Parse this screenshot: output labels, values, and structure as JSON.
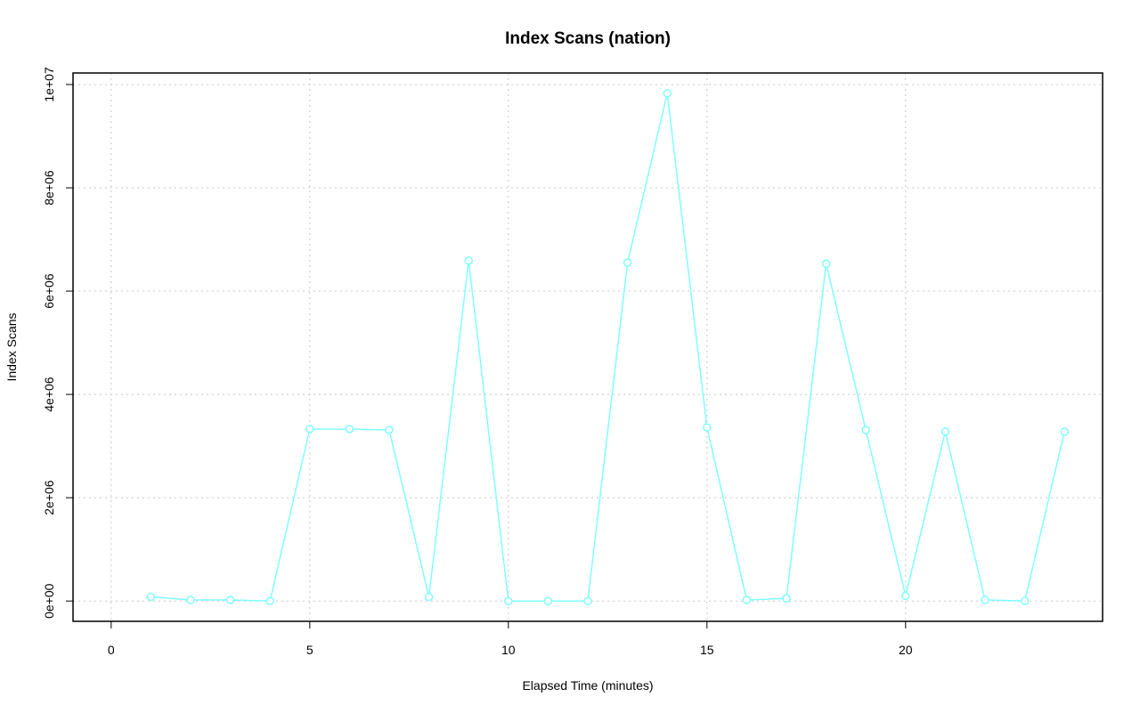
{
  "chart_data": {
    "type": "line",
    "title": "Index Scans (nation)",
    "xlabel": "Elapsed Time (minutes)",
    "ylabel": "Index Scans",
    "x": [
      1,
      2,
      3,
      4,
      5,
      6,
      7,
      8,
      9,
      10,
      11,
      12,
      13,
      14,
      15,
      16,
      17,
      18,
      19,
      20,
      21,
      22,
      23,
      24
    ],
    "values": [
      80000,
      20000,
      20000,
      0,
      3330000,
      3330000,
      3310000,
      80000,
      6590000,
      0,
      0,
      0,
      6550000,
      9830000,
      3360000,
      20000,
      50000,
      6530000,
      3310000,
      100000,
      3280000,
      20000,
      0,
      3280000
    ],
    "color": "#80ffff",
    "xlim": [
      -0.96,
      24.96
    ],
    "xticks": [
      0,
      5,
      10,
      15,
      20
    ],
    "ylim": [
      -393000,
      10223000
    ],
    "yticks": [
      {
        "value": 0,
        "label": "0e+00"
      },
      {
        "value": 2000000,
        "label": "2e+06"
      },
      {
        "value": 4000000,
        "label": "4e+06"
      },
      {
        "value": 6000000,
        "label": "6e+06"
      },
      {
        "value": 8000000,
        "label": "8e+06"
      },
      {
        "value": 10000000,
        "label": "1e+07"
      }
    ],
    "grid": true
  }
}
